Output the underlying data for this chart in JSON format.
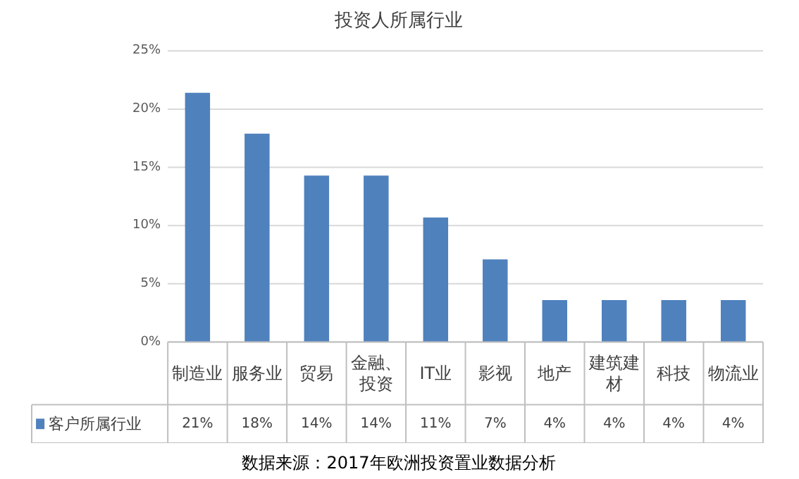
{
  "chart_data": {
    "type": "bar",
    "title": "投资人所属行业",
    "categories": [
      "制造业",
      "服务业",
      "贸易",
      "金融、投资",
      "IT业",
      "影视",
      "地产",
      "建筑建材",
      "科技",
      "物流业"
    ],
    "series": [
      {
        "name": "客户所属行业",
        "color": "#4f81bd",
        "values": [
          21.4,
          17.9,
          14.3,
          14.3,
          10.7,
          7.1,
          3.6,
          3.6,
          3.6,
          3.6
        ],
        "value_labels": [
          "21%",
          "18%",
          "14%",
          "14%",
          "11%",
          "7%",
          "4%",
          "4%",
          "4%",
          "4%"
        ]
      }
    ],
    "ylim": [
      0,
      25
    ],
    "yticks": [
      {
        "value": 0,
        "label": "0%"
      },
      {
        "value": 5,
        "label": "5%"
      },
      {
        "value": 10,
        "label": "10%"
      },
      {
        "value": 15,
        "label": "15%"
      },
      {
        "value": 20,
        "label": "20%"
      },
      {
        "value": 25,
        "label": "25%"
      }
    ],
    "grid": "y",
    "legend": "bottom",
    "annotations": [
      "数据来源：2017年欧洲投资置业数据分析"
    ]
  }
}
